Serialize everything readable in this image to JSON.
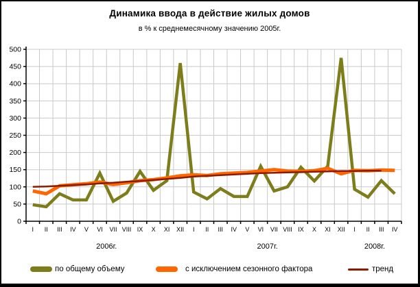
{
  "accent_colors": {
    "grid": "#c9c9c9",
    "axis": "#000000",
    "background": "#ffffff",
    "frame_border": "#000000"
  },
  "chart_data": {
    "type": "line",
    "title": "Динамика ввода в действие жилых домов",
    "subtitle": "в % к среднемесячному значению 2005г.",
    "ylim": [
      0,
      500
    ],
    "yticks": [
      0,
      50,
      100,
      150,
      200,
      250,
      300,
      350,
      400,
      450,
      500
    ],
    "grid": true,
    "legend_position": "bottom",
    "x_months": [
      "I",
      "II",
      "III",
      "IV",
      "V",
      "VI",
      "VII",
      "VIII",
      "IX",
      "X",
      "XI",
      "XII",
      "I",
      "II",
      "III",
      "IV",
      "V",
      "VI",
      "VII",
      "VIII",
      "IX",
      "X",
      "XI",
      "XII",
      "I",
      "II",
      "III",
      "IV"
    ],
    "year_groups": [
      {
        "label": "2006г.",
        "start": 0,
        "count": 12
      },
      {
        "label": "2007г.",
        "start": 12,
        "count": 12
      },
      {
        "label": "2008г.",
        "start": 24,
        "count": 4
      }
    ],
    "series": [
      {
        "id": "total-volume",
        "name": "по общему объему",
        "color": "#7e7d1c",
        "line_width": 4.5,
        "values": [
          48,
          42,
          80,
          62,
          62,
          140,
          58,
          82,
          145,
          90,
          118,
          460,
          85,
          65,
          95,
          72,
          72,
          160,
          88,
          100,
          157,
          117,
          160,
          475,
          93,
          70,
          118,
          80
        ]
      },
      {
        "id": "seasonally-adjusted",
        "name": "с исключением сезонного фактора",
        "color": "#ff6600",
        "line_width": 5,
        "values": [
          88,
          80,
          103,
          106,
          109,
          114,
          107,
          112,
          118,
          121,
          126,
          132,
          135,
          133,
          138,
          140,
          142,
          146,
          150,
          146,
          145,
          147,
          154,
          138,
          148,
          147,
          149,
          148
        ]
      },
      {
        "id": "trend",
        "name": "тренд",
        "color": "#8c1a00",
        "line_width": 2.5,
        "values": [
          100,
          101,
          103,
          105,
          107,
          110,
          112,
          115,
          117,
          120,
          123,
          126,
          130,
          132,
          134,
          136,
          138,
          140,
          141,
          142,
          143,
          144,
          145,
          146,
          146,
          147,
          147,
          null
        ]
      }
    ]
  }
}
